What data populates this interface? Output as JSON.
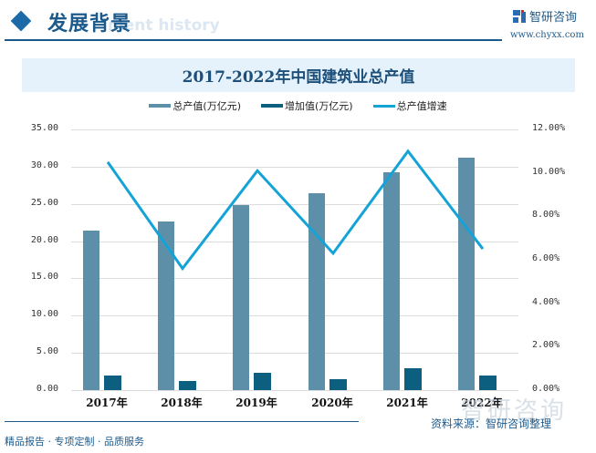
{
  "header": {
    "title": "发展背景",
    "subtitle_watermark": "ment history",
    "logo_text": "智研咨询",
    "logo_url": "www.chyxx.com"
  },
  "chart_title": "2017-2022年中国建筑业总产值",
  "legend": [
    {
      "label": "总产值(万亿元)",
      "color": "#5e8fa8"
    },
    {
      "label": "增加值(万亿元)",
      "color": "#0d5f80"
    },
    {
      "label": "总产值增速",
      "color": "#14a3d6"
    }
  ],
  "y_left_ticks": [
    "35.00",
    "30.00",
    "25.00",
    "20.00",
    "15.00",
    "10.00",
    "5.00",
    "0.00"
  ],
  "y_right_ticks": [
    "12.00%",
    "10.00%",
    "8.00%",
    "6.00%",
    "4.00%",
    "2.00%",
    "0.00%"
  ],
  "footer": {
    "source": "资料来源：智研咨询整理",
    "left": "精品报告 · 专项定制 · 品质服务",
    "watermark": "智研咨询"
  },
  "chart_data": {
    "type": "bar",
    "title": "2017-2022年中国建筑业总产值",
    "categories": [
      "2017年",
      "2018年",
      "2019年",
      "2020年",
      "2021年",
      "2022年"
    ],
    "series": [
      {
        "name": "总产值(万亿元)",
        "type": "bar",
        "axis": "left",
        "values": [
          21.4,
          22.6,
          24.8,
          26.4,
          29.3,
          31.2
        ]
      },
      {
        "name": "增加值(万亿元)",
        "type": "bar",
        "axis": "left",
        "values": [
          2.0,
          1.2,
          2.3,
          1.5,
          2.9,
          1.9
        ]
      },
      {
        "name": "总产值增速",
        "type": "line",
        "axis": "right",
        "values": [
          10.5,
          5.6,
          10.1,
          6.3,
          11.0,
          6.5
        ],
        "unit": "%"
      }
    ],
    "ylim_left": [
      0,
      35
    ],
    "ylim_right": [
      0,
      12
    ],
    "xlabel": "",
    "ylabel": "",
    "grid": true,
    "legend_position": "top"
  }
}
